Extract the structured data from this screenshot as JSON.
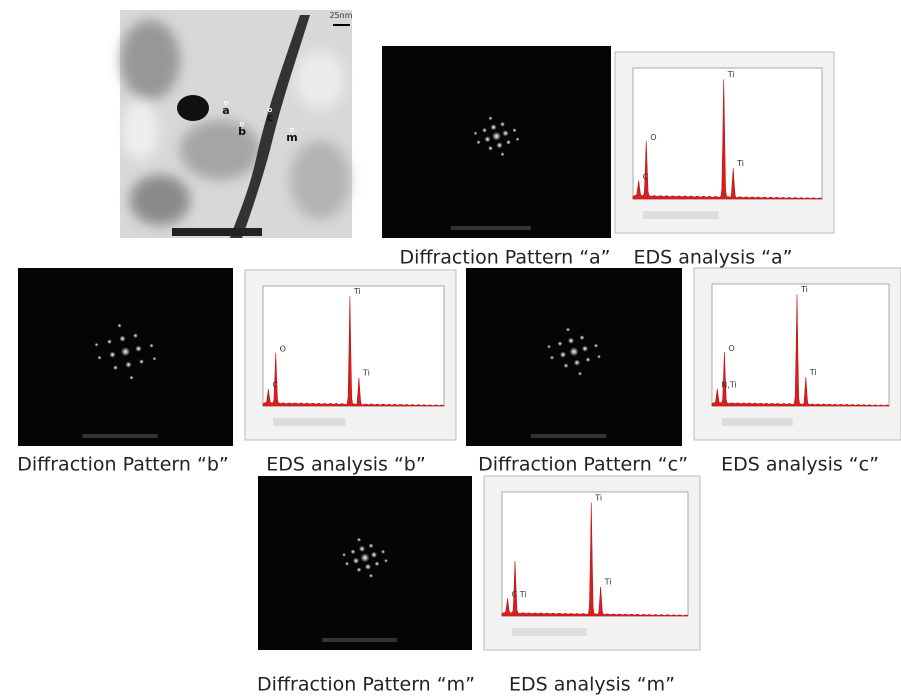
{
  "micrograph": {
    "scale_bar": "25nm",
    "points": [
      "a",
      "b",
      "c",
      "m"
    ]
  },
  "panels": [
    {
      "type": "diffraction",
      "caption": "Diffraction Pattern “a”"
    },
    {
      "type": "eds",
      "caption": "EDS analysis “a”",
      "peak_labels": [
        "C",
        "O",
        "Ti",
        "Ti"
      ]
    },
    {
      "type": "diffraction",
      "caption": "Diffraction Pattern “b”"
    },
    {
      "type": "eds",
      "caption": "EDS analysis “b”",
      "peak_labels": [
        "C",
        "O",
        "Ti",
        "Ti"
      ]
    },
    {
      "type": "diffraction",
      "caption": "Diffraction Pattern “c”"
    },
    {
      "type": "eds",
      "caption": "EDS analysis “c”",
      "peak_labels": [
        "N,Ti",
        "O",
        "Ti",
        "Ti"
      ]
    },
    {
      "type": "diffraction",
      "caption": "Diffraction Pattern “m”"
    },
    {
      "type": "eds",
      "caption": "EDS analysis “m”",
      "peak_labels": [
        "C Ti",
        "",
        "Ti",
        "Ti"
      ]
    }
  ]
}
